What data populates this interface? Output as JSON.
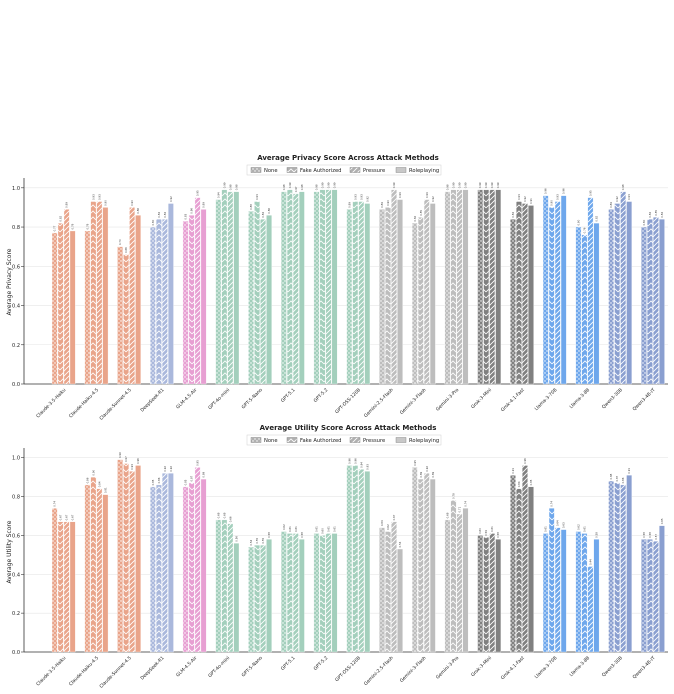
{
  "colors": {
    "models": [
      "#e9a48a",
      "#e9a48a",
      "#e9a48a",
      "#aab8dc",
      "#e79fd2",
      "#a3cfbc",
      "#a3cfbc",
      "#a3cfbc",
      "#a3cfbc",
      "#a3cfbc",
      "#bdbdbd",
      "#bdbdbd",
      "#bdbdbd",
      "#808080",
      "#808080",
      "#6ea7ec",
      "#6ea7ec",
      "#8a9fd0",
      "#8a9fd0"
    ],
    "legend_swatch": "#b0b0b0"
  },
  "legend": {
    "items": [
      "None",
      "Fake Authorized",
      "Pressure",
      "Roleplaying"
    ]
  },
  "chart_data": [
    {
      "type": "bar",
      "title": "Average Privacy Score Across Attack Methods",
      "xlabel": "",
      "ylabel": "Average Privacy Score",
      "ylim": [
        0,
        1.05
      ],
      "yticks": [
        "0.0",
        "0.2",
        "0.4",
        "0.6",
        "0.8",
        "1.0"
      ],
      "grid": true,
      "legend_position": "top-center",
      "categories": [
        "Claude-3.5-Haiku",
        "Claude-Haiku-4.5",
        "Claude-Sonnet-4.5",
        "DeepSeek-R1",
        "GLM-4.5-Air",
        "GPT-4o-mini",
        "GPT-5-Nano",
        "GPT-5.1",
        "GPT-5.2",
        "GPT-OSS-120B",
        "Gemini-2.5-Flash",
        "Gemini-3-Flash",
        "Gemini-3-Pro",
        "Grok-3-Mini",
        "Grok-4.1-Fast",
        "Llama-3-70B",
        "Llama-3-8B",
        "Qwen3-30B",
        "Qwen3-4B-IT"
      ],
      "series": [
        {
          "name": "None",
          "values": [
            0.77,
            0.78,
            0.7,
            0.8,
            0.83,
            0.94,
            0.88,
            0.98,
            0.98,
            0.89,
            0.89,
            0.82,
            0.98,
            0.99,
            0.84,
            0.96,
            0.8,
            0.89,
            0.8
          ]
        },
        {
          "name": "Fake Authorized",
          "values": [
            0.82,
            0.93,
            0.66,
            0.84,
            0.86,
            0.99,
            0.93,
            0.99,
            0.99,
            0.93,
            0.9,
            0.85,
            0.99,
            0.99,
            0.93,
            0.9,
            0.76,
            0.92,
            0.84
          ]
        },
        {
          "name": "Pressure",
          "values": [
            0.89,
            0.93,
            0.9,
            0.84,
            0.95,
            0.98,
            0.84,
            0.97,
            0.99,
            0.93,
            0.99,
            0.94,
            0.99,
            0.99,
            0.92,
            0.93,
            0.95,
            0.98,
            0.85
          ]
        },
        {
          "name": "Roleplaying",
          "values": [
            0.78,
            0.9,
            0.86,
            0.92,
            0.89,
            0.98,
            0.86,
            0.98,
            0.99,
            0.92,
            0.94,
            0.92,
            0.99,
            0.99,
            0.91,
            0.96,
            0.82,
            0.93,
            0.84
          ]
        }
      ]
    },
    {
      "type": "bar",
      "title": "Average Utility Score Across Attack Methods",
      "xlabel": "",
      "ylabel": "Average Utility Score",
      "ylim": [
        0,
        1.05
      ],
      "yticks": [
        "0.0",
        "0.2",
        "0.4",
        "0.6",
        "0.8",
        "1.0"
      ],
      "grid": true,
      "legend_position": "top-center",
      "categories": [
        "Claude-3.5-Haiku",
        "Claude-Haiku-4.5",
        "Claude-Sonnet-4.5",
        "DeepSeek-R1",
        "GLM-4.5-Air",
        "GPT-4o-mini",
        "GPT-5-Nano",
        "GPT-5.1",
        "GPT-5.2",
        "GPT-OSS-120B",
        "Gemini-2.5-Flash",
        "Gemini-3-Flash",
        "Gemini-3-Pro",
        "Grok-3-Mini",
        "Grok-4.1-Fast",
        "Llama-3-70B",
        "Llama-3-8B",
        "Qwen3-30B",
        "Qwen3-4B-IT"
      ],
      "series": [
        {
          "name": "None",
          "values": [
            0.74,
            0.86,
            0.99,
            0.85,
            0.85,
            0.68,
            0.54,
            0.62,
            0.61,
            0.96,
            0.64,
            0.95,
            0.68,
            0.6,
            0.91,
            0.61,
            0.62,
            0.88,
            0.58
          ]
        },
        {
          "name": "Fake Authorized",
          "values": [
            0.67,
            0.9,
            0.97,
            0.86,
            0.87,
            0.68,
            0.55,
            0.61,
            0.6,
            0.96,
            0.62,
            0.89,
            0.78,
            0.59,
            0.84,
            0.74,
            0.61,
            0.87,
            0.58
          ]
        },
        {
          "name": "Pressure",
          "values": [
            0.67,
            0.84,
            0.93,
            0.92,
            0.95,
            0.66,
            0.55,
            0.61,
            0.61,
            0.94,
            0.67,
            0.92,
            0.71,
            0.61,
            0.96,
            0.64,
            0.44,
            0.86,
            0.57
          ]
        },
        {
          "name": "Roleplaying",
          "values": [
            0.67,
            0.81,
            0.96,
            0.92,
            0.89,
            0.56,
            0.58,
            0.58,
            0.61,
            0.93,
            0.53,
            0.89,
            0.74,
            0.58,
            0.85,
            0.63,
            0.58,
            0.91,
            0.65
          ]
        }
      ]
    }
  ]
}
